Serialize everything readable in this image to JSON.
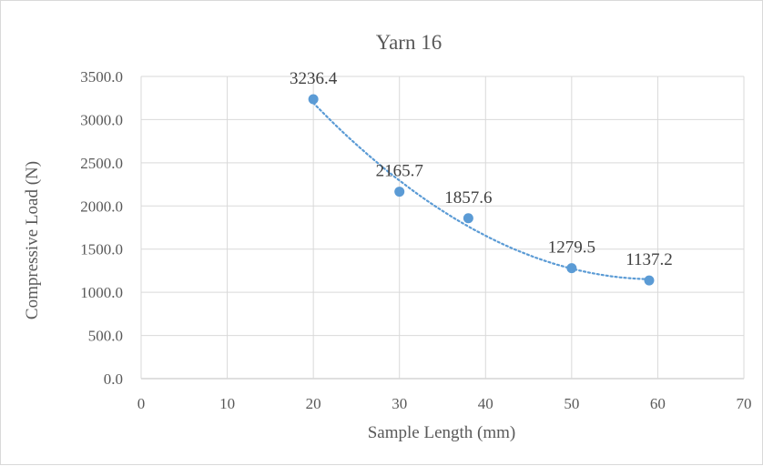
{
  "chart_data": {
    "type": "scatter",
    "title": "Yarn 16",
    "xlabel": "Sample Length (mm)",
    "ylabel": "Compressive Load (N)",
    "xlim": [
      0,
      70
    ],
    "ylim": [
      0,
      3500
    ],
    "x_ticks": [
      "0",
      "10",
      "20",
      "30",
      "40",
      "50",
      "60",
      "70"
    ],
    "y_ticks": [
      "0.0",
      "500.0",
      "1000.0",
      "1500.0",
      "2000.0",
      "2500.0",
      "3000.0",
      "3500.0"
    ],
    "grid": true,
    "trendline": "polynomial (order 2), dotted",
    "series": [
      {
        "x": [
          20,
          30,
          38,
          50,
          59
        ],
        "y": [
          3236.4,
          2165.7,
          1857.6,
          1279.5,
          1137.2
        ],
        "labels": [
          "3236.4",
          "2165.7",
          "1857.6",
          "1279.5",
          "1137.2"
        ]
      }
    ],
    "color": "#5b9bd5"
  }
}
